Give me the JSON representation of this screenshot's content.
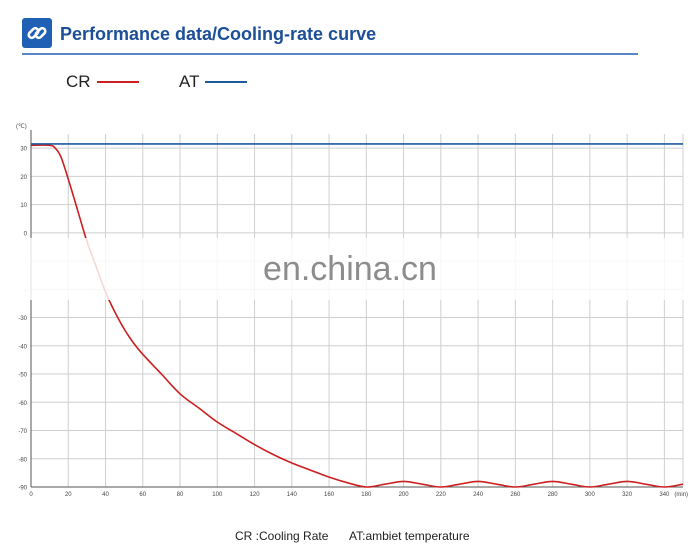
{
  "header": {
    "title": "Performance data/Cooling-rate curve",
    "icon": "link-chain-icon",
    "accent_color": "#1c4f96"
  },
  "legend_top": [
    {
      "label": "CR",
      "color": "#cc1f1f"
    },
    {
      "label": "AT",
      "color": "#1f5a9e"
    }
  ],
  "watermark": "en.china.cn",
  "legend_bottom": {
    "cr": "CR :Cooling Rate",
    "at": "AT:ambiet temperature"
  },
  "chart_data": {
    "type": "line",
    "y_unit_label": "(℃)",
    "x_unit_label": "(min)",
    "xlim": [
      0,
      350
    ],
    "ylim": [
      -90,
      35
    ],
    "grid": true,
    "x_ticks": [
      0,
      20,
      40,
      60,
      80,
      100,
      120,
      140,
      160,
      180,
      200,
      220,
      240,
      260,
      280,
      300,
      320,
      340
    ],
    "y_ticks": [
      {
        "value": 30,
        "label": "30"
      },
      {
        "value": 20,
        "label": "20"
      },
      {
        "value": 10,
        "label": "10"
      },
      {
        "value": 0,
        "label": "0"
      },
      {
        "value": -10,
        "label": ""
      },
      {
        "value": -20,
        "label": "-"
      },
      {
        "value": -30,
        "label": "-30"
      },
      {
        "value": -40,
        "label": "-40"
      },
      {
        "value": -50,
        "label": "-50"
      },
      {
        "value": -60,
        "label": "-60"
      },
      {
        "value": -70,
        "label": "-70"
      },
      {
        "value": -80,
        "label": "-80"
      },
      {
        "value": -90,
        "label": "-90"
      }
    ],
    "series": [
      {
        "name": "CR",
        "color": "#cc1f1f",
        "x": [
          0,
          10,
          13,
          16,
          20,
          25,
          30,
          35,
          40,
          45,
          50,
          55,
          60,
          70,
          80,
          90,
          100,
          110,
          120,
          130,
          140,
          150,
          160,
          170,
          180,
          190,
          200,
          210,
          220,
          230,
          240,
          250,
          260,
          270,
          280,
          290,
          300,
          310,
          320,
          330,
          340,
          350
        ],
        "y": [
          31,
          31,
          30,
          27,
          19,
          8,
          -3,
          -12,
          -21,
          -28,
          -34,
          -39,
          -43,
          -50,
          -57,
          -62,
          -67,
          -71,
          -75,
          -78.5,
          -81.5,
          -84,
          -86.5,
          -88.5,
          -90,
          -89,
          -88,
          -89,
          -90,
          -89,
          -88,
          -89,
          -90,
          -89,
          -88,
          -89,
          -90,
          -89,
          -88,
          -89,
          -90,
          -89
        ]
      },
      {
        "name": "AT",
        "color": "#1f5a9e",
        "x": [
          0,
          350
        ],
        "y": [
          31.5,
          31.5
        ]
      }
    ]
  }
}
